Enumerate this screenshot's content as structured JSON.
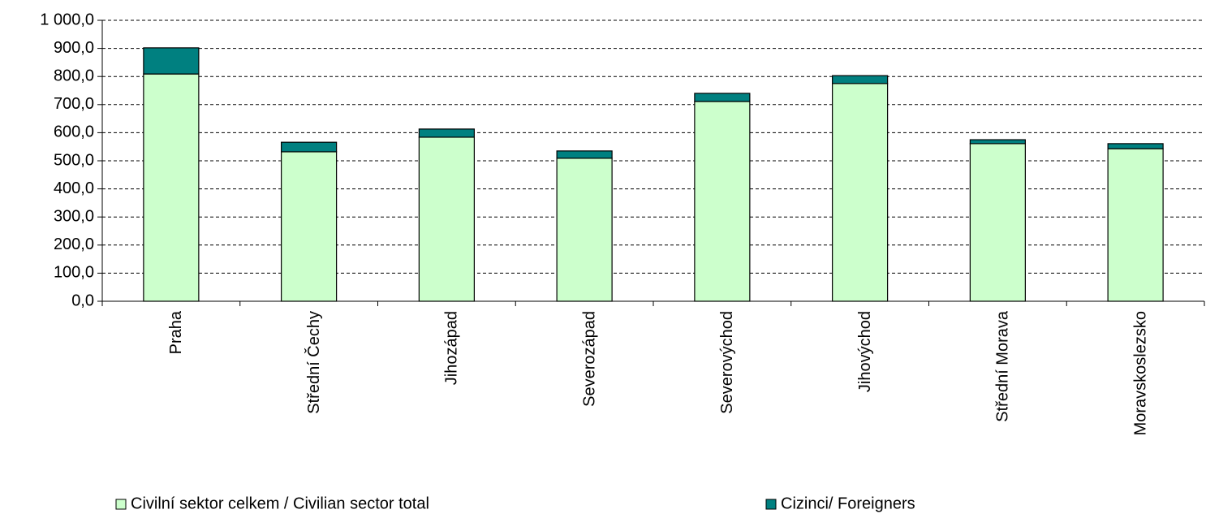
{
  "chart_data": {
    "type": "stacked_bar",
    "categories": [
      "Praha",
      "Střední Čechy",
      "Jihozápad",
      "Severozápad",
      "Severovýchod",
      "Jihovýchod",
      "Střední Morava",
      "Moravskoslezsko"
    ],
    "series": [
      {
        "name": "Civilní sektor celkem / Civilian sector total",
        "color": "#ccffcc",
        "values": [
          809,
          532,
          584,
          509,
          711,
          775,
          561,
          543
        ]
      },
      {
        "name": "Cizinci/ Foreigners",
        "color": "#008080",
        "values": [
          93,
          34,
          29,
          26,
          29,
          28,
          14,
          18
        ]
      }
    ],
    "ylim": [
      0,
      1000
    ],
    "yticks": [
      {
        "value": 0,
        "label": "0,0"
      },
      {
        "value": 100,
        "label": "100,0"
      },
      {
        "value": 200,
        "label": "200,0"
      },
      {
        "value": 300,
        "label": "300,0"
      },
      {
        "value": 400,
        "label": "400,0"
      },
      {
        "value": 500,
        "label": "500,0"
      },
      {
        "value": 600,
        "label": "600,0"
      },
      {
        "value": 700,
        "label": "700,0"
      },
      {
        "value": 800,
        "label": "800,0"
      },
      {
        "value": 900,
        "label": "900,0"
      },
      {
        "value": 1000,
        "label": "1 000,0"
      }
    ],
    "grid": true,
    "legend": "bottom"
  }
}
